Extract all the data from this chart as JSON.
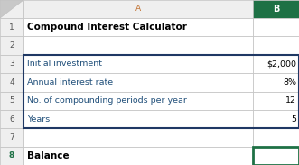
{
  "title": "Compound Interest Calculator",
  "rows": [
    {
      "label": "Initial investment",
      "value": "$2,000",
      "row": 3
    },
    {
      "label": "Annual interest rate",
      "value": "8%",
      "row": 4
    },
    {
      "label": "No. of compounding periods per year",
      "value": "12",
      "row": 5
    },
    {
      "label": "Years",
      "value": "5",
      "row": 6
    },
    {
      "label": "Balance",
      "value": "?",
      "row": 8
    }
  ],
  "col_header_A": "A",
  "col_header_B": "B",
  "bg_color": "#ffffff",
  "header_bg": "#efefef",
  "col_b_header_bg": "#1e7145",
  "col_b_header_fg": "#ffffff",
  "title_color": "#000000",
  "label_color": "#1f4e79",
  "value_color": "#000000",
  "balance_label_color": "#000000",
  "balance_box_border": "#1e7145",
  "thick_border_color": "#1f3864",
  "grid_color": "#c0c0c0",
  "row8_num_color": "#1e7145",
  "fig_width": 3.31,
  "fig_height": 1.83,
  "dpi": 100
}
